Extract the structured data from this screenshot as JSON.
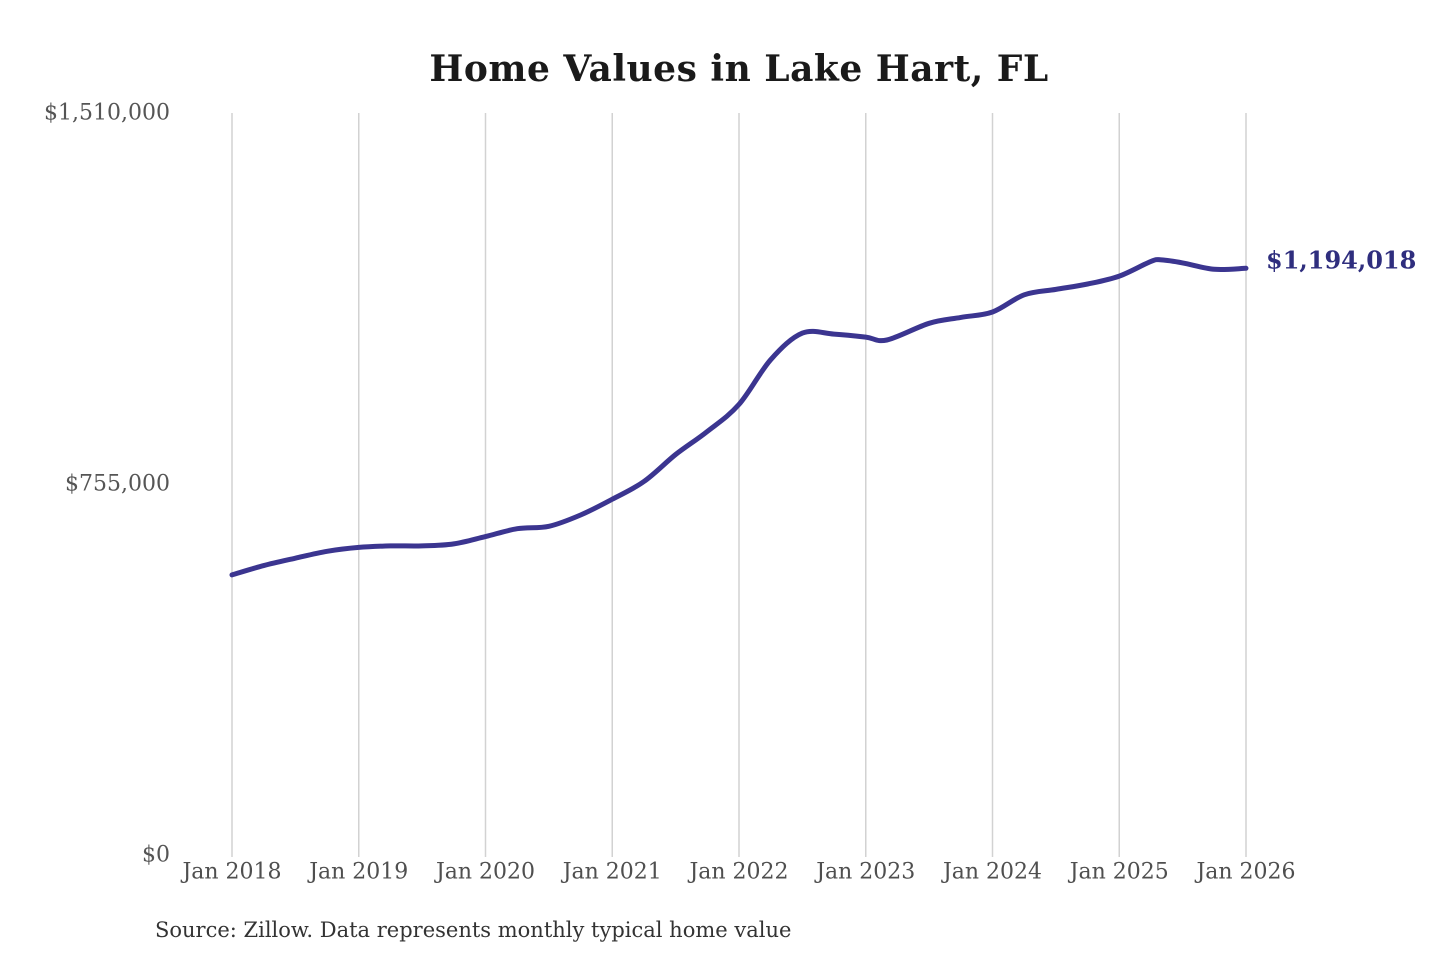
{
  "title": "Home Values in Lake Hart, FL",
  "source_note": "Source: Zillow. Data represents monthly typical home value",
  "end_label": "$1,194,018",
  "colors": {
    "background": "#ffffff",
    "title": "#1a1a1a",
    "line": "#3b3590",
    "end_label": "#2f2e7e",
    "axis_label": "#555555",
    "x_axis_label": "#4f4f4f",
    "gridline": "#d2d2d2",
    "source": "#333333"
  },
  "chart_data": {
    "type": "line",
    "title": "Home Values in Lake Hart, FL",
    "series_name": "Typical home value",
    "x": [
      "2018-01",
      "2018-04",
      "2018-07",
      "2018-10",
      "2019-01",
      "2019-04",
      "2019-07",
      "2019-10",
      "2020-01",
      "2020-04",
      "2020-07",
      "2020-10",
      "2021-01",
      "2021-04",
      "2021-07",
      "2021-10",
      "2022-01",
      "2022-04",
      "2022-07",
      "2022-10",
      "2023-01",
      "2023-03",
      "2023-07",
      "2023-10",
      "2024-01",
      "2024-04",
      "2024-07",
      "2024-10",
      "2025-01",
      "2025-04",
      "2025-05",
      "2025-07",
      "2025-10",
      "2026-01"
    ],
    "values": [
      570000,
      589000,
      604000,
      618000,
      626000,
      629000,
      629000,
      633000,
      648000,
      664000,
      669000,
      692000,
      724000,
      760000,
      815000,
      862000,
      917000,
      1008000,
      1062000,
      1060000,
      1054000,
      1048000,
      1082000,
      1094000,
      1105000,
      1140000,
      1151000,
      1162000,
      1178000,
      1208000,
      1211000,
      1205000,
      1192000,
      1194018
    ],
    "final_value": 1194018,
    "final_value_label": "$1,194,018",
    "ylim": [
      0,
      1510000
    ],
    "xlim": [
      "2018-01",
      "2026-01"
    ],
    "grid": "vertical-only",
    "legend": "none",
    "y_ticks": [
      {
        "label": "$0",
        "value": 0
      },
      {
        "label": "$755,000",
        "value": 755000
      },
      {
        "label": "$1,510,000",
        "value": 1510000
      }
    ],
    "x_ticks": [
      {
        "label": "Jan 2018",
        "date": "2018-01"
      },
      {
        "label": "Jan 2019",
        "date": "2019-01"
      },
      {
        "label": "Jan 2020",
        "date": "2020-01"
      },
      {
        "label": "Jan 2021",
        "date": "2021-01"
      },
      {
        "label": "Jan 2022",
        "date": "2022-01"
      },
      {
        "label": "Jan 2023",
        "date": "2023-01"
      },
      {
        "label": "Jan 2024",
        "date": "2024-01"
      },
      {
        "label": "Jan 2025",
        "date": "2025-01"
      },
      {
        "label": "Jan 2026",
        "date": "2026-01"
      }
    ]
  }
}
